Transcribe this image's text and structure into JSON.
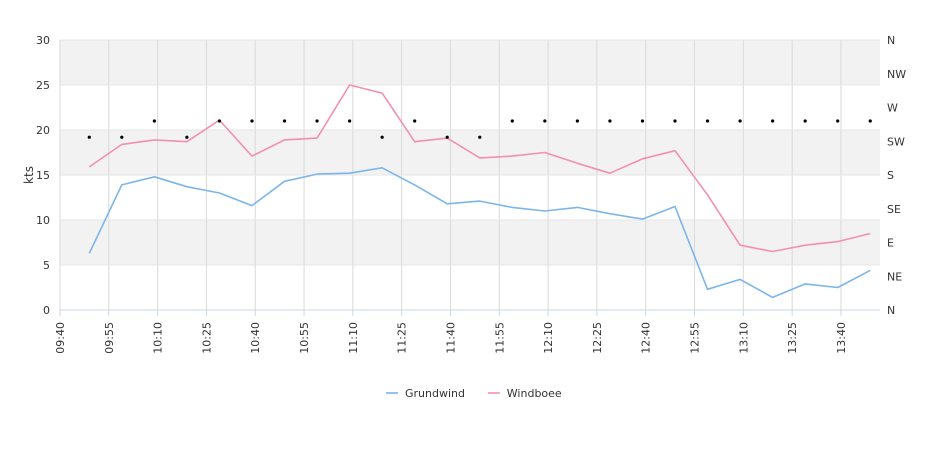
{
  "chart_data": {
    "type": "line",
    "ylabel": "kts",
    "ylim": [
      0,
      30
    ],
    "yticks": [
      "0",
      "5",
      "10",
      "15",
      "20",
      "25",
      "30"
    ],
    "y2ticks": [
      "N",
      "NE",
      "E",
      "SE",
      "S",
      "SW",
      "W",
      "NW",
      "N"
    ],
    "xticks": [
      "09:40",
      "09:55",
      "10:10",
      "10:25",
      "10:40",
      "10:55",
      "11:10",
      "11:25",
      "11:40",
      "11:55",
      "12:10",
      "12:25",
      "12:40",
      "12:55",
      "13:10",
      "13:25",
      "13:40"
    ],
    "xlim_minutes": [
      580,
      832
    ],
    "legend": "bottom",
    "grid": true,
    "series": [
      {
        "name": "Grundwind",
        "color": "#7cb5ec",
        "x": [
          "09:49",
          "09:59",
          "10:09",
          "10:19",
          "10:29",
          "10:39",
          "10:49",
          "10:59",
          "11:09",
          "11:19",
          "11:29",
          "11:39",
          "11:49",
          "11:59",
          "12:09",
          "12:19",
          "12:29",
          "12:39",
          "12:49",
          "12:59",
          "13:09",
          "13:19",
          "13:29",
          "13:39",
          "13:49"
        ],
        "values": [
          6.3,
          13.9,
          14.8,
          13.7,
          13.0,
          11.6,
          14.3,
          15.1,
          15.2,
          15.8,
          13.9,
          11.8,
          12.1,
          11.4,
          11.0,
          11.4,
          10.7,
          10.1,
          11.5,
          2.3,
          3.4,
          1.4,
          2.9,
          2.5,
          4.4
        ]
      },
      {
        "name": "Windboee",
        "color": "#f48fb1",
        "x": [
          "09:49",
          "09:59",
          "10:09",
          "10:19",
          "10:29",
          "10:39",
          "10:49",
          "10:59",
          "11:09",
          "11:19",
          "11:29",
          "11:39",
          "11:49",
          "11:59",
          "12:09",
          "12:19",
          "12:29",
          "12:39",
          "12:49",
          "12:59",
          "13:09",
          "13:19",
          "13:29",
          "13:39",
          "13:49"
        ],
        "values": [
          15.9,
          18.4,
          18.9,
          18.7,
          21.1,
          17.1,
          18.9,
          19.1,
          25.0,
          24.1,
          18.7,
          19.1,
          16.9,
          17.1,
          17.5,
          16.3,
          15.2,
          16.8,
          17.7,
          12.8,
          7.2,
          6.5,
          7.2,
          7.6,
          8.5
        ]
      }
    ],
    "direction_markers": {
      "x": [
        "09:49",
        "09:59",
        "10:09",
        "10:19",
        "10:29",
        "10:39",
        "10:49",
        "10:59",
        "11:09",
        "11:19",
        "11:29",
        "11:39",
        "11:49",
        "11:59",
        "12:09",
        "12:19",
        "12:29",
        "12:39",
        "12:49",
        "12:59",
        "13:09",
        "13:19",
        "13:29",
        "13:39",
        "13:49"
      ],
      "values": [
        19.2,
        19.2,
        21.0,
        19.2,
        21.0,
        21.0,
        21.0,
        21.0,
        21.0,
        19.2,
        21.0,
        19.2,
        19.2,
        21.0,
        21.0,
        21.0,
        21.0,
        21.0,
        21.0,
        21.0,
        21.0,
        21.0,
        21.0,
        21.0,
        21.0
      ]
    }
  }
}
